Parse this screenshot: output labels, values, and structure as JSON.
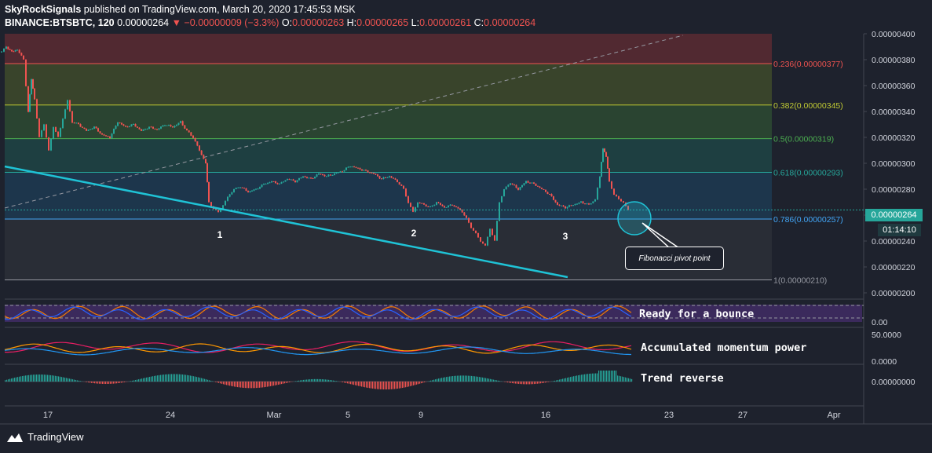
{
  "header": {
    "publisher": "SkyRockSignals",
    "published_text": "published on TradingView.com, March 20, 2020 17:45:53 MSK",
    "symbol": "BINANCE:BTSBTC, 120",
    "last": "0.00000264",
    "change": "−0.00000009 (−3.3%)",
    "o_label": "O:",
    "o_value": "0.00000263",
    "h_label": "H:",
    "h_value": "0.00000265",
    "l_label": "L:",
    "l_value": "0.00000261",
    "c_label": "C:",
    "c_value": "0.00000264"
  },
  "price_tag": "0.00000264",
  "timer_tag": "01:14:10",
  "callout_text": "Fibonacci pivot point",
  "indicators": {
    "rsi_label": "Ready for a bounce",
    "momentum_label": "Accumulated momentum power",
    "trend_label": "Trend reverse",
    "rsi_axis": "0.00",
    "mom_axis_top": "50.0000",
    "mom_axis_bottom": "0.0000",
    "trend_axis": "0.00000000"
  },
  "branding": "TradingView",
  "colors": {
    "background": "#1e222d",
    "candle_up": "#26a69a",
    "candle_down": "#ef5350",
    "trendline": "#1fc3d6",
    "fib_red": "#5a2a33",
    "fib_olive": "#3e4a2c",
    "fib_green": "#2d4a33",
    "fib_teal": "#1f4445",
    "fib_blue": "#1d3a52",
    "fib_gray": "#2c2f38"
  },
  "chart_data": {
    "type": "candlestick",
    "y_axis_ticks": [
      "0.00000400",
      "0.00000380",
      "0.00000360",
      "0.00000340",
      "0.00000320",
      "0.00000300",
      "0.00000280",
      "0.00000260",
      "0.00000240",
      "0.00000220",
      "0.00000200"
    ],
    "ylim": [
      2e-06,
      4e-06
    ],
    "x_axis_ticks": [
      "17",
      "24",
      "Mar",
      "5",
      "9",
      "16",
      "23",
      "27",
      "Apr"
    ],
    "fib_levels": [
      {
        "label": "0.236(0.00000377)",
        "value": 3.77e-06,
        "color": "#ef5350"
      },
      {
        "label": "0.382(0.00000345)",
        "value": 3.45e-06,
        "color": "#c0ca33"
      },
      {
        "label": "0.5(0.00000319)",
        "value": 3.19e-06,
        "color": "#4caf50"
      },
      {
        "label": "0.618(0.00000293)",
        "value": 2.93e-06,
        "color": "#26a69a"
      },
      {
        "label": "0.786(0.00000257)",
        "value": 2.57e-06,
        "color": "#42a5f5"
      },
      {
        "label": "1(0.00000210)",
        "value": 2.1e-06,
        "color": "#9598a1"
      }
    ],
    "wave_labels": [
      "1",
      "2",
      "3"
    ],
    "price_path": [
      [
        2,
        3.86e-06
      ],
      [
        8,
        3.9e-06
      ],
      [
        15,
        3.86e-06
      ],
      [
        22,
        3.88e-06
      ],
      [
        30,
        3.8e-06
      ],
      [
        36,
        3.4e-06
      ],
      [
        40,
        3.65e-06
      ],
      [
        44,
        3.5e-06
      ],
      [
        50,
        3.2e-06
      ],
      [
        56,
        3.3e-06
      ],
      [
        62,
        3.1e-06
      ],
      [
        68,
        3.28e-06
      ],
      [
        74,
        3.2e-06
      ],
      [
        80,
        3.35e-06
      ],
      [
        86,
        3.48e-06
      ],
      [
        92,
        3.32e-06
      ],
      [
        100,
        3.3e-06
      ],
      [
        110,
        3.25e-06
      ],
      [
        120,
        3.28e-06
      ],
      [
        130,
        3.22e-06
      ],
      [
        140,
        3.2e-06
      ],
      [
        150,
        3.32e-06
      ],
      [
        160,
        3.28e-06
      ],
      [
        170,
        3.3e-06
      ],
      [
        180,
        3.25e-06
      ],
      [
        190,
        3.28e-06
      ],
      [
        200,
        3.26e-06
      ],
      [
        210,
        3.3e-06
      ],
      [
        220,
        3.28e-06
      ],
      [
        230,
        3.32e-06
      ],
      [
        238,
        3.25e-06
      ],
      [
        246,
        3.2e-06
      ],
      [
        254,
        3.1e-06
      ],
      [
        262,
        3e-06
      ],
      [
        266,
        2.7e-06
      ],
      [
        272,
        2.65e-06
      ],
      [
        278,
        2.62e-06
      ],
      [
        284,
        2.68e-06
      ],
      [
        290,
        2.74e-06
      ],
      [
        298,
        2.8e-06
      ],
      [
        306,
        2.82e-06
      ],
      [
        316,
        2.78e-06
      ],
      [
        326,
        2.8e-06
      ],
      [
        336,
        2.84e-06
      ],
      [
        346,
        2.86e-06
      ],
      [
        356,
        2.84e-06
      ],
      [
        366,
        2.88e-06
      ],
      [
        376,
        2.86e-06
      ],
      [
        386,
        2.9e-06
      ],
      [
        396,
        2.88e-06
      ],
      [
        406,
        2.92e-06
      ],
      [
        416,
        2.9e-06
      ],
      [
        426,
        2.92e-06
      ],
      [
        436,
        2.94e-06
      ],
      [
        446,
        2.98e-06
      ],
      [
        456,
        2.96e-06
      ],
      [
        466,
        2.94e-06
      ],
      [
        476,
        2.92e-06
      ],
      [
        486,
        2.88e-06
      ],
      [
        496,
        2.9e-06
      ],
      [
        506,
        2.86e-06
      ],
      [
        514,
        2.8e-06
      ],
      [
        520,
        2.7e-06
      ],
      [
        526,
        2.62e-06
      ],
      [
        532,
        2.7e-06
      ],
      [
        540,
        2.68e-06
      ],
      [
        548,
        2.66e-06
      ],
      [
        556,
        2.7e-06
      ],
      [
        566,
        2.66e-06
      ],
      [
        576,
        2.68e-06
      ],
      [
        586,
        2.64e-06
      ],
      [
        594,
        2.58e-06
      ],
      [
        600,
        2.5e-06
      ],
      [
        606,
        2.46e-06
      ],
      [
        612,
        2.4e-06
      ],
      [
        618,
        2.36e-06
      ],
      [
        624,
        2.5e-06
      ],
      [
        630,
        2.4e-06
      ],
      [
        636,
        2.7e-06
      ],
      [
        642,
        2.8e-06
      ],
      [
        650,
        2.85e-06
      ],
      [
        660,
        2.8e-06
      ],
      [
        670,
        2.86e-06
      ],
      [
        680,
        2.84e-06
      ],
      [
        690,
        2.8e-06
      ],
      [
        700,
        2.76e-06
      ],
      [
        710,
        2.68e-06
      ],
      [
        720,
        2.66e-06
      ],
      [
        730,
        2.68e-06
      ],
      [
        740,
        2.7e-06
      ],
      [
        750,
        2.68e-06
      ],
      [
        758,
        2.72e-06
      ],
      [
        764,
        2.9e-06
      ],
      [
        768,
        3.12e-06
      ],
      [
        772,
        3.05e-06
      ],
      [
        776,
        2.86e-06
      ],
      [
        782,
        2.76e-06
      ],
      [
        788,
        2.72e-06
      ],
      [
        794,
        2.7e-06
      ],
      [
        800,
        2.64e-06
      ]
    ]
  }
}
